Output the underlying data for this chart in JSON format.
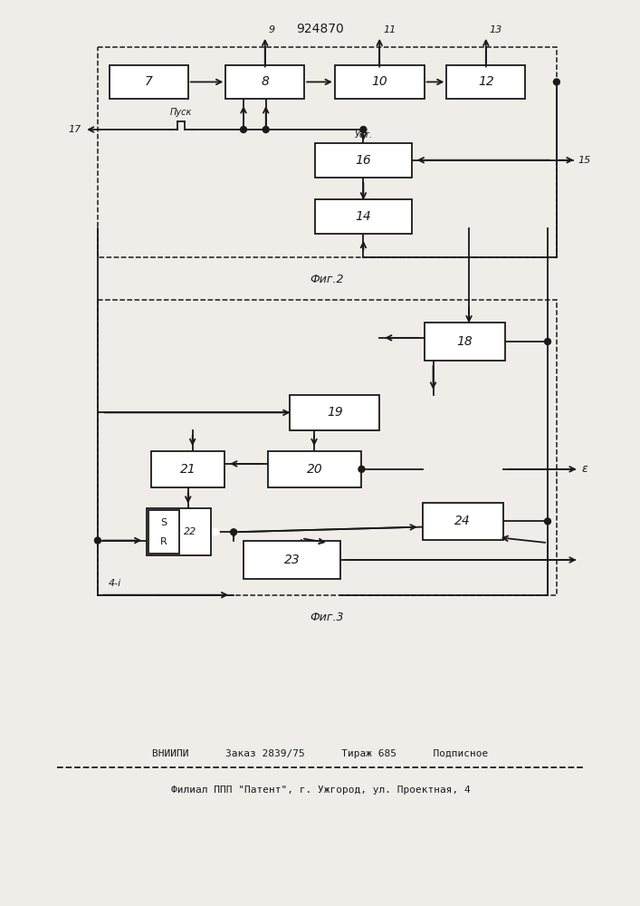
{
  "title": "924870",
  "fig2_label": "Фиг.2",
  "fig3_label": "Фиг.3",
  "footer_line1": "ВНИИПИ      Заказ 2839/75      Тираж 685      Подписное",
  "footer_line2": "Филиал ППП \"Патент\", г. Ужгород, ул. Проектная, 4",
  "bg_color": "#f0ede8",
  "line_color": "#1a1a1a"
}
